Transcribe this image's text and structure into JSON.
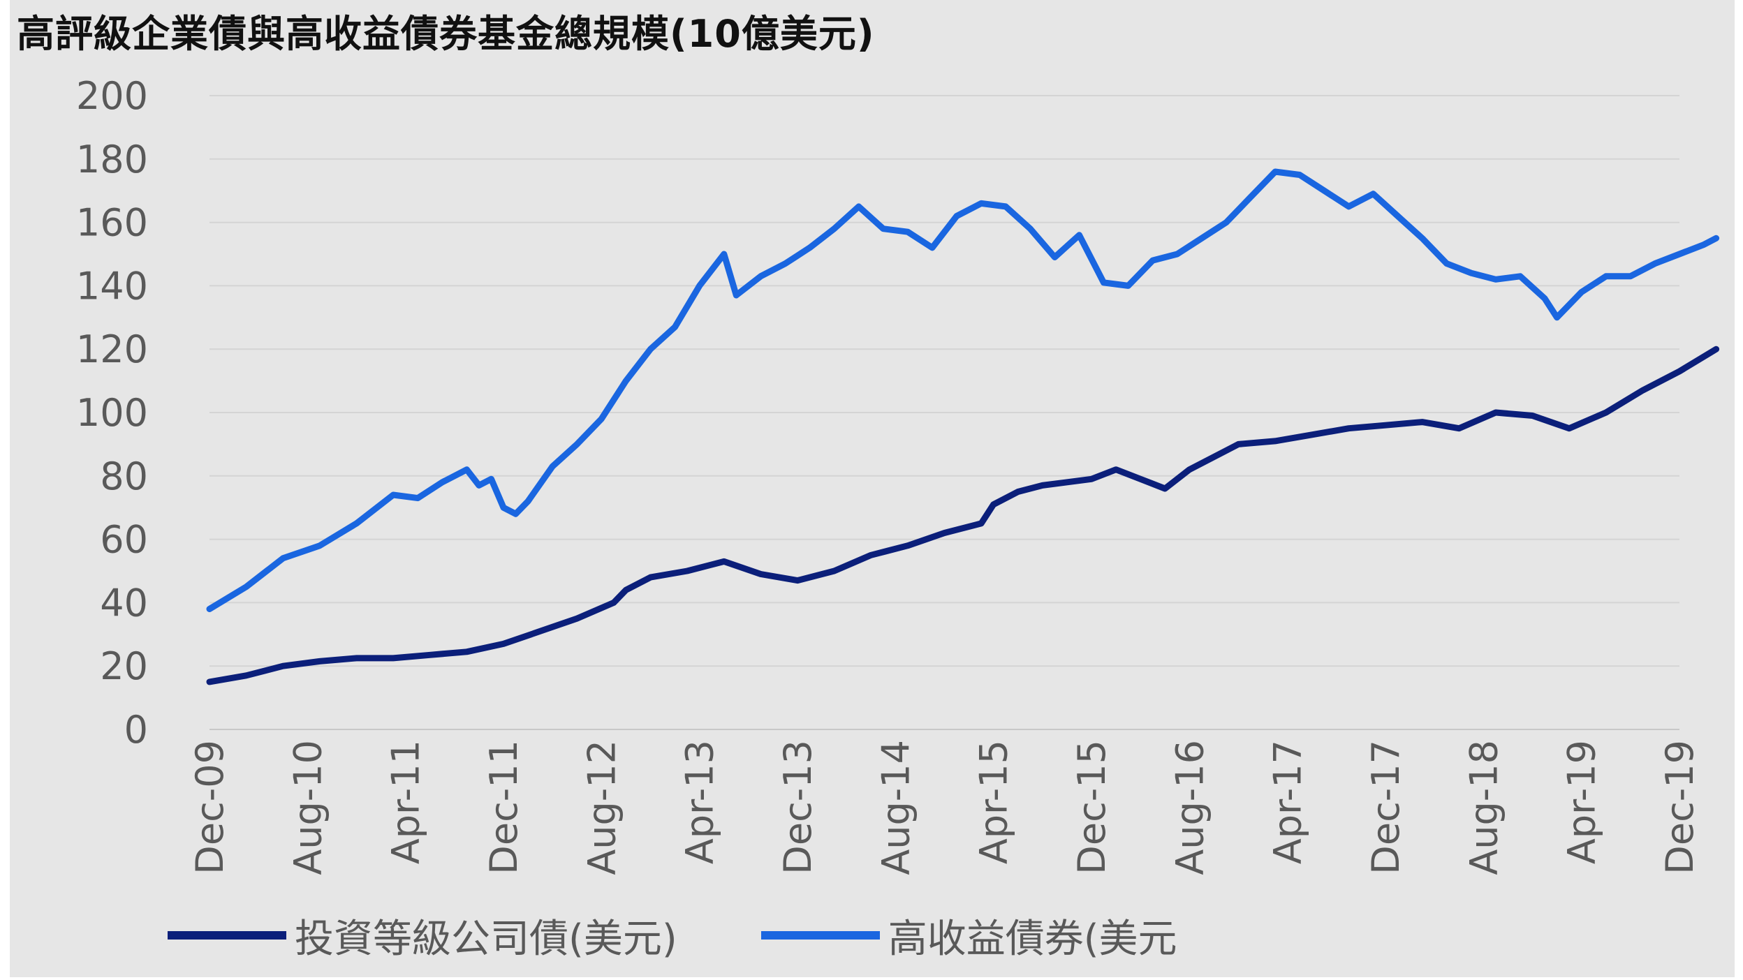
{
  "chart_data": {
    "type": "line",
    "title": "高評級企業債與高收益債券基金總規模(10億美元)",
    "ylim": [
      0,
      200
    ],
    "yticks": [
      "200",
      "180",
      "160",
      "140",
      "120",
      "100",
      "80",
      "60",
      "40",
      "20",
      "0"
    ],
    "xtick_labels": [
      "Dec-09",
      "Aug-10",
      "Apr-11",
      "Dec-11",
      "Aug-12",
      "Apr-13",
      "Dec-13",
      "Aug-14",
      "Apr-15",
      "Dec-15",
      "Aug-16",
      "Apr-17",
      "Dec-17",
      "Aug-18",
      "Apr-19",
      "Dec-19"
    ],
    "grid": "horizontal",
    "legend_position": "bottom",
    "x_start": "Dec-09",
    "x_end": "Dec-19",
    "series": [
      {
        "name": "投資等級公司債(美元)",
        "color": "#0b1f7a",
        "points": [
          [
            "Dec-09",
            15
          ],
          [
            "Mar-10",
            17
          ],
          [
            "Jun-10",
            20
          ],
          [
            "Sep-10",
            21.5
          ],
          [
            "Dec-10",
            22.5
          ],
          [
            "Mar-11",
            22.5
          ],
          [
            "Jun-11",
            23.5
          ],
          [
            "Sep-11",
            24.5
          ],
          [
            "Dec-11",
            27
          ],
          [
            "Mar-12",
            31
          ],
          [
            "Jun-12",
            35
          ],
          [
            "Sep-12",
            40
          ],
          [
            "Oct-12",
            44
          ],
          [
            "Dec-12",
            48
          ],
          [
            "Mar-13",
            50
          ],
          [
            "Jun-13",
            53
          ],
          [
            "Sep-13",
            49
          ],
          [
            "Dec-13",
            47
          ],
          [
            "Mar-14",
            50
          ],
          [
            "Jun-14",
            55
          ],
          [
            "Sep-14",
            58
          ],
          [
            "Dec-14",
            62
          ],
          [
            "Mar-15",
            65
          ],
          [
            "Apr-15",
            71
          ],
          [
            "Jun-15",
            75
          ],
          [
            "Aug-15",
            77
          ],
          [
            "Dec-15",
            79
          ],
          [
            "Feb-16",
            82
          ],
          [
            "Apr-16",
            79
          ],
          [
            "Jun-16",
            76
          ],
          [
            "Aug-16",
            82
          ],
          [
            "Dec-16",
            90
          ],
          [
            "Mar-17",
            91
          ],
          [
            "Jun-17",
            93
          ],
          [
            "Sep-17",
            95
          ],
          [
            "Dec-17",
            96
          ],
          [
            "Mar-18",
            97
          ],
          [
            "Jun-18",
            95
          ],
          [
            "Sep-18",
            100
          ],
          [
            "Dec-18",
            99
          ],
          [
            "Mar-19",
            95
          ],
          [
            "Jun-19",
            100
          ],
          [
            "Sep-19",
            107
          ],
          [
            "Dec-19",
            113
          ],
          [
            "Mar-20",
            120
          ]
        ]
      },
      {
        "name": "高收益債券(美元",
        "color": "#1a66e0",
        "points": [
          [
            "Dec-09",
            38
          ],
          [
            "Mar-10",
            45
          ],
          [
            "Jun-10",
            54
          ],
          [
            "Sep-10",
            58
          ],
          [
            "Dec-10",
            65
          ],
          [
            "Mar-11",
            74
          ],
          [
            "May-11",
            73
          ],
          [
            "Jul-11",
            78
          ],
          [
            "Sep-11",
            82
          ],
          [
            "Oct-11",
            77
          ],
          [
            "Nov-11",
            79
          ],
          [
            "Dec-11",
            70
          ],
          [
            "Jan-12",
            68
          ],
          [
            "Feb-12",
            72
          ],
          [
            "Apr-12",
            83
          ],
          [
            "Jun-12",
            90
          ],
          [
            "Aug-12",
            98
          ],
          [
            "Oct-12",
            110
          ],
          [
            "Dec-12",
            120
          ],
          [
            "Feb-13",
            127
          ],
          [
            "Apr-13",
            140
          ],
          [
            "Jun-13",
            150
          ],
          [
            "Jul-13",
            137
          ],
          [
            "Sep-13",
            143
          ],
          [
            "Nov-13",
            147
          ],
          [
            "Jan-14",
            152
          ],
          [
            "Mar-14",
            158
          ],
          [
            "May-14",
            165
          ],
          [
            "Jul-14",
            158
          ],
          [
            "Sep-14",
            157
          ],
          [
            "Nov-14",
            152
          ],
          [
            "Jan-15",
            162
          ],
          [
            "Mar-15",
            166
          ],
          [
            "May-15",
            165
          ],
          [
            "Jul-15",
            158
          ],
          [
            "Sep-15",
            149
          ],
          [
            "Nov-15",
            156
          ],
          [
            "Jan-16",
            141
          ],
          [
            "Mar-16",
            140
          ],
          [
            "May-16",
            148
          ],
          [
            "Jul-16",
            150
          ],
          [
            "Sep-16",
            155
          ],
          [
            "Nov-16",
            160
          ],
          [
            "Jan-17",
            168
          ],
          [
            "Mar-17",
            176
          ],
          [
            "May-17",
            175
          ],
          [
            "Jul-17",
            170
          ],
          [
            "Sep-17",
            165
          ],
          [
            "Nov-17",
            169
          ],
          [
            "Jan-18",
            162
          ],
          [
            "Mar-18",
            155
          ],
          [
            "May-18",
            147
          ],
          [
            "Jul-18",
            144
          ],
          [
            "Sep-18",
            142
          ],
          [
            "Nov-18",
            143
          ],
          [
            "Jan-19",
            136
          ],
          [
            "Feb-19",
            130
          ],
          [
            "Apr-19",
            138
          ],
          [
            "Jun-19",
            143
          ],
          [
            "Aug-19",
            143
          ],
          [
            "Oct-19",
            147
          ],
          [
            "Dec-19",
            150
          ],
          [
            "Feb-20",
            153
          ],
          [
            "Mar-20",
            155
          ]
        ]
      }
    ]
  }
}
